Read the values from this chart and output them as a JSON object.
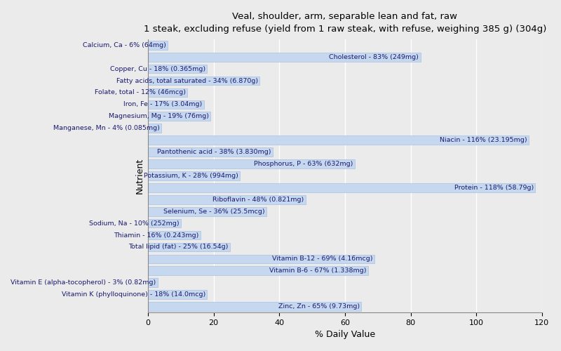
{
  "title_line1": "Veal, shoulder, arm, separable lean and fat, raw",
  "title_line2": "1 steak, excluding refuse (yield from 1 raw steak, with refuse, weighing 385 g) (304g)",
  "xlabel": "% Daily Value",
  "ylabel": "Nutrient",
  "xlim": [
    0,
    120
  ],
  "xticks": [
    0,
    20,
    40,
    60,
    80,
    100,
    120
  ],
  "background_color": "#ebebeb",
  "bar_color": "#c5d8f0",
  "bar_edge_color": "#a8c0e0",
  "nutrients": [
    {
      "label": "Calcium, Ca - 6% (64mg)",
      "value": 6
    },
    {
      "label": "Cholesterol - 83% (249mg)",
      "value": 83
    },
    {
      "label": "Copper, Cu - 18% (0.365mg)",
      "value": 18
    },
    {
      "label": "Fatty acids, total saturated - 34% (6.870g)",
      "value": 34
    },
    {
      "label": "Folate, total - 12% (46mcg)",
      "value": 12
    },
    {
      "label": "Iron, Fe - 17% (3.04mg)",
      "value": 17
    },
    {
      "label": "Magnesium, Mg - 19% (76mg)",
      "value": 19
    },
    {
      "label": "Manganese, Mn - 4% (0.085mg)",
      "value": 4
    },
    {
      "label": "Niacin - 116% (23.195mg)",
      "value": 116
    },
    {
      "label": "Pantothenic acid - 38% (3.830mg)",
      "value": 38
    },
    {
      "label": "Phosphorus, P - 63% (632mg)",
      "value": 63
    },
    {
      "label": "Potassium, K - 28% (994mg)",
      "value": 28
    },
    {
      "label": "Protein - 118% (58.79g)",
      "value": 118
    },
    {
      "label": "Riboflavin - 48% (0.821mg)",
      "value": 48
    },
    {
      "label": "Selenium, Se - 36% (25.5mcg)",
      "value": 36
    },
    {
      "label": "Sodium, Na - 10% (252mg)",
      "value": 10
    },
    {
      "label": "Thiamin - 16% (0.243mg)",
      "value": 16
    },
    {
      "label": "Total lipid (fat) - 25% (16.54g)",
      "value": 25
    },
    {
      "label": "Vitamin B-12 - 69% (4.16mcg)",
      "value": 69
    },
    {
      "label": "Vitamin B-6 - 67% (1.338mg)",
      "value": 67
    },
    {
      "label": "Vitamin E (alpha-tocopherol) - 3% (0.82mg)",
      "value": 3
    },
    {
      "label": "Vitamin K (phylloquinone) - 18% (14.0mcg)",
      "value": 18
    },
    {
      "label": "Zinc, Zn - 65% (9.73mg)",
      "value": 65
    }
  ],
  "label_fontsize": 6.8,
  "title_fontsize1": 9.5,
  "title_fontsize2": 8.5,
  "axis_fontsize": 9
}
